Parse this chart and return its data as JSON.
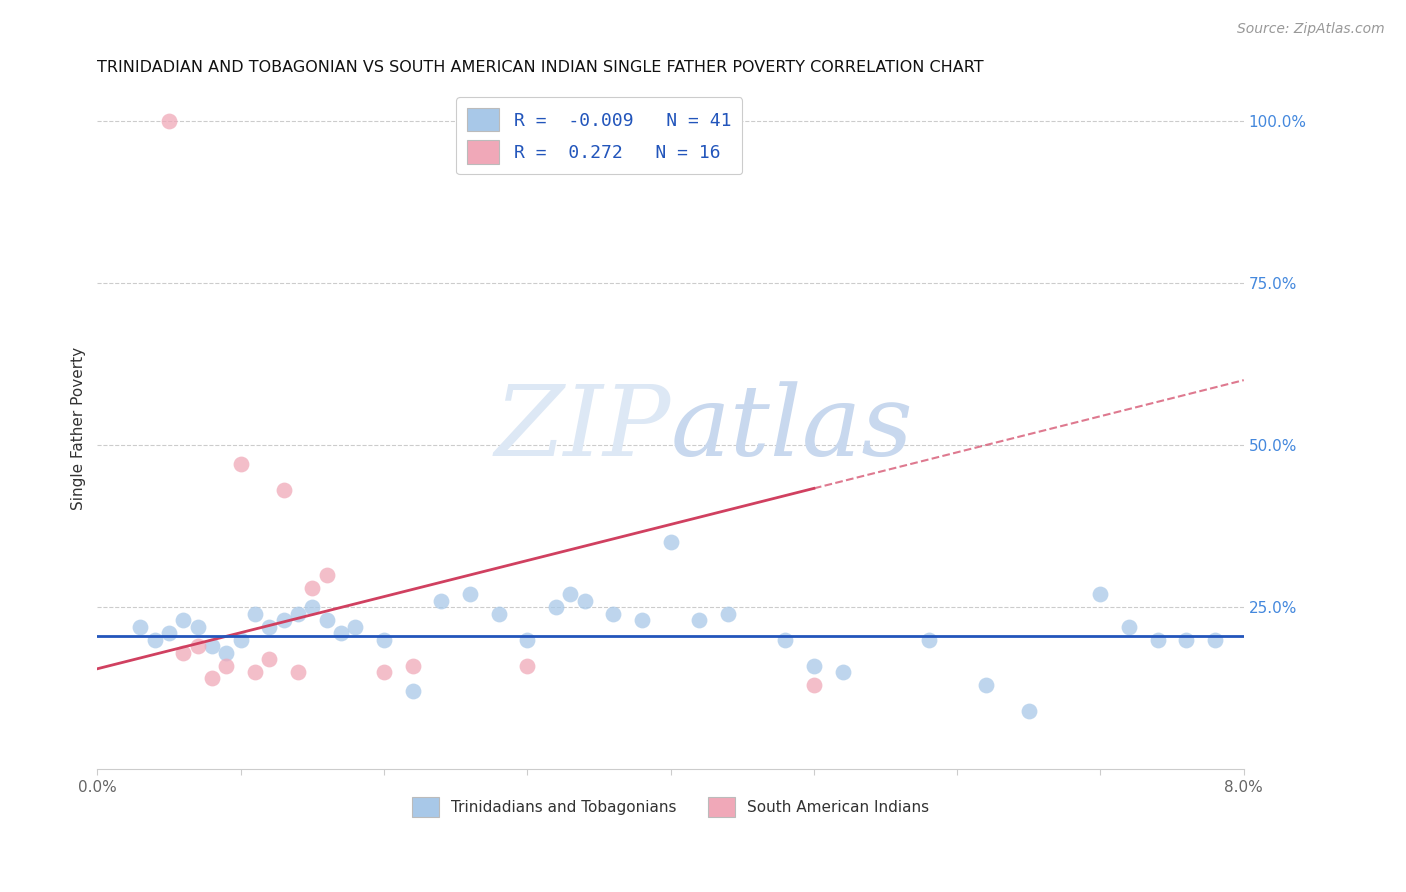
{
  "title": "TRINIDADIAN AND TOBAGONIAN VS SOUTH AMERICAN INDIAN SINGLE FATHER POVERTY CORRELATION CHART",
  "source": "Source: ZipAtlas.com",
  "ylabel": "Single Father Poverty",
  "xlim": [
    0.0,
    0.08
  ],
  "ylim": [
    0.0,
    1.05
  ],
  "xticks": [
    0.0,
    0.01,
    0.02,
    0.03,
    0.04,
    0.05,
    0.06,
    0.07,
    0.08
  ],
  "xtick_labels": [
    "0.0%",
    "",
    "",
    "",
    "",
    "",
    "",
    "",
    "8.0%"
  ],
  "ytick_labels_right": [
    "100.0%",
    "75.0%",
    "50.0%",
    "25.0%"
  ],
  "ytick_positions_right": [
    1.0,
    0.75,
    0.5,
    0.25
  ],
  "r_blue": -0.009,
  "n_blue": 41,
  "r_pink": 0.272,
  "n_pink": 16,
  "blue_color": "#a8c8e8",
  "pink_color": "#f0a8b8",
  "blue_line_color": "#2255bb",
  "pink_line_color": "#d04060",
  "legend_label_blue": "Trinidadians and Tobagonians",
  "legend_label_pink": "South American Indians",
  "blue_x": [
    0.003,
    0.004,
    0.005,
    0.006,
    0.007,
    0.008,
    0.009,
    0.01,
    0.011,
    0.012,
    0.013,
    0.014,
    0.015,
    0.016,
    0.017,
    0.018,
    0.02,
    0.022,
    0.024,
    0.026,
    0.028,
    0.03,
    0.032,
    0.033,
    0.034,
    0.036,
    0.038,
    0.04,
    0.042,
    0.044,
    0.048,
    0.05,
    0.052,
    0.058,
    0.062,
    0.065,
    0.07,
    0.072,
    0.074,
    0.076,
    0.078
  ],
  "blue_y": [
    0.22,
    0.2,
    0.21,
    0.23,
    0.22,
    0.19,
    0.18,
    0.2,
    0.24,
    0.22,
    0.23,
    0.24,
    0.25,
    0.23,
    0.21,
    0.22,
    0.2,
    0.12,
    0.26,
    0.27,
    0.24,
    0.2,
    0.25,
    0.27,
    0.26,
    0.24,
    0.23,
    0.35,
    0.23,
    0.24,
    0.2,
    0.16,
    0.15,
    0.2,
    0.13,
    0.09,
    0.27,
    0.22,
    0.2,
    0.2,
    0.2
  ],
  "pink_x": [
    0.005,
    0.006,
    0.007,
    0.008,
    0.009,
    0.01,
    0.011,
    0.012,
    0.013,
    0.014,
    0.015,
    0.016,
    0.02,
    0.022,
    0.03,
    0.05
  ],
  "pink_y": [
    1.0,
    0.18,
    0.19,
    0.14,
    0.16,
    0.47,
    0.15,
    0.17,
    0.43,
    0.15,
    0.28,
    0.3,
    0.15,
    0.16,
    0.16,
    0.13
  ],
  "pink_line_x0": 0.0,
  "pink_line_y0": 0.155,
  "pink_line_x1": 0.08,
  "pink_line_y1": 0.6,
  "blue_line_y_val": 0.205
}
